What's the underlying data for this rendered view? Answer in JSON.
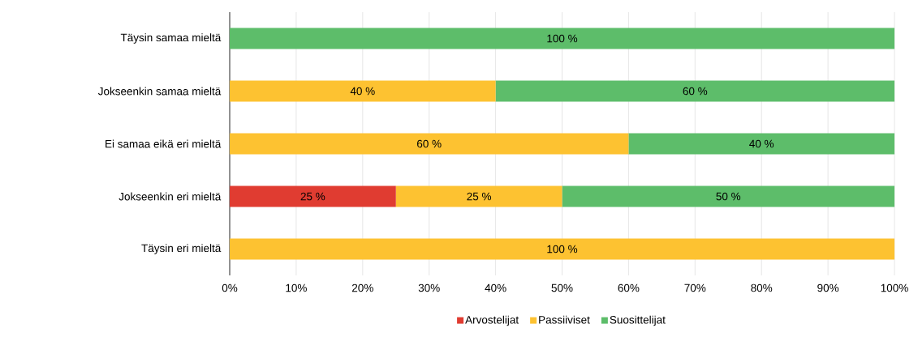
{
  "chart_data": {
    "type": "bar",
    "orientation": "horizontal",
    "stacked": true,
    "grid": "x",
    "legend": "bottom",
    "categories": [
      "Täysin samaa mieltä",
      "Jokseenkin samaa mieltä",
      "Ei samaa eikä eri mieltä",
      "Jokseenkin eri mieltä",
      "Täysin eri mieltä"
    ],
    "xlim": [
      0,
      100
    ],
    "xticks": [
      {
        "value": 0,
        "label": "0%"
      },
      {
        "value": 10,
        "label": "10%"
      },
      {
        "value": 20,
        "label": "20%"
      },
      {
        "value": 30,
        "label": "30%"
      },
      {
        "value": 40,
        "label": "40%"
      },
      {
        "value": 50,
        "label": "50%"
      },
      {
        "value": 60,
        "label": "60%"
      },
      {
        "value": 70,
        "label": "70%"
      },
      {
        "value": 80,
        "label": "80%"
      },
      {
        "value": 90,
        "label": "90%"
      },
      {
        "value": 100,
        "label": "100%"
      }
    ],
    "series": [
      {
        "name": "Arvostelijat",
        "color": "#e03c31",
        "values": [
          0,
          0,
          0,
          25,
          0
        ],
        "value_labels": [
          null,
          null,
          null,
          "25 %",
          null
        ]
      },
      {
        "name": "Passiiviset",
        "color": "#fdc231",
        "values": [
          0,
          40,
          60,
          25,
          100
        ],
        "value_labels": [
          null,
          "40 %",
          "60 %",
          "25 %",
          "100 %"
        ]
      },
      {
        "name": "Suosittelijat",
        "color": "#5dbd6a",
        "values": [
          100,
          60,
          40,
          50,
          0
        ],
        "value_labels": [
          "100 %",
          "60 %",
          "40 %",
          "50 %",
          null
        ]
      }
    ]
  }
}
